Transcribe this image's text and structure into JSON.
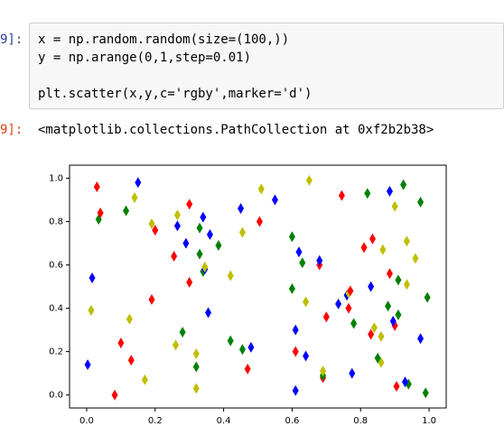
{
  "notebook": {
    "input_prompt": "9]:",
    "code_lines": [
      "x = np.random.random(size=(100,))",
      "y = np.arange(0,1,step=0.01)",
      "plt.scatter(x,y,c='rgby',marker='d')"
    ],
    "output_prompt": "9]:",
    "output_text": "<matplotlib.collections.PathCollection at 0xf2b2b38>"
  },
  "chart_data": {
    "type": "scatter",
    "marker": "thin-diamond",
    "colors": [
      "#ff0000",
      "#008000",
      "#0000ff",
      "#bfbf00"
    ],
    "x": [
      0.082,
      0.99,
      0.61,
      0.32,
      0.905,
      0.94,
      0.93,
      0.17,
      0.69,
      0.69,
      0.775,
      0.69,
      0.47,
      0.32,
      0.003,
      0.86,
      0.13,
      0.85,
      0.64,
      0.32,
      0.61,
      0.455,
      0.48,
      0.26,
      0.1,
      0.42,
      0.975,
      0.86,
      0.83,
      0.28,
      0.61,
      0.84,
      0.9,
      0.78,
      0.895,
      0.125,
      0.7,
      0.91,
      0.355,
      0.013,
      0.765,
      0.88,
      0.735,
      0.64,
      0.19,
      0.995,
      0.76,
      0.765,
      0.77,
      0.6,
      0.83,
      0.935,
      0.3,
      0.91,
      0.016,
      0.42,
      0.885,
      0.34,
      0.345,
      0.345,
      0.68,
      0.63,
      0.68,
      0.96,
      0.255,
      0.33,
      0.62,
      0.865,
      0.81,
      0.385,
      0.29,
      0.935,
      0.835,
      0.6,
      0.36,
      0.455,
      0.2,
      0.33,
      0.265,
      0.19,
      0.505,
      0.035,
      0.34,
      0.265,
      0.04,
      0.115,
      0.45,
      0.9,
      0.3,
      0.975,
      0.55,
      0.14,
      0.745,
      0.82,
      0.885,
      0.51,
      0.03,
      0.925,
      0.15,
      0.65
    ],
    "y": [
      0,
      0.01,
      0.02,
      0.03,
      0.04,
      0.05,
      0.06,
      0.07,
      0.08,
      0.09,
      0.1,
      0.11,
      0.12,
      0.13,
      0.14,
      0.15,
      0.16,
      0.17,
      0.18,
      0.19,
      0.2,
      0.21,
      0.22,
      0.23,
      0.24,
      0.25,
      0.26,
      0.27,
      0.28,
      0.29,
      0.3,
      0.31,
      0.32,
      0.33,
      0.34,
      0.35,
      0.36,
      0.37,
      0.38,
      0.39,
      0.4,
      0.41,
      0.42,
      0.43,
      0.44,
      0.45,
      0.46,
      0.47,
      0.48,
      0.49,
      0.5,
      0.51,
      0.52,
      0.53,
      0.54,
      0.55,
      0.56,
      0.57,
      0.58,
      0.59,
      0.6,
      0.61,
      0.62,
      0.63,
      0.64,
      0.65,
      0.66,
      0.67,
      0.68,
      0.69,
      0.7,
      0.71,
      0.72,
      0.73,
      0.74,
      0.75,
      0.76,
      0.77,
      0.78,
      0.79,
      0.8,
      0.81,
      0.82,
      0.83,
      0.84,
      0.85,
      0.86,
      0.87,
      0.88,
      0.89,
      0.9,
      0.91,
      0.92,
      0.93,
      0.94,
      0.95,
      0.96,
      0.97,
      0.98,
      0.99
    ],
    "xlim": [
      -0.05,
      1.05
    ],
    "ylim": [
      -0.06,
      1.06
    ],
    "xticks": [
      {
        "value": 0,
        "label": "0.0"
      },
      0.2,
      0.4,
      0.6,
      0.8,
      {
        "value": 1,
        "label": "1.0"
      }
    ],
    "yticks": [
      {
        "value": 0,
        "label": "0.0"
      },
      0.2,
      0.4,
      0.6,
      0.8,
      {
        "value": 1,
        "label": "1.0"
      }
    ]
  }
}
